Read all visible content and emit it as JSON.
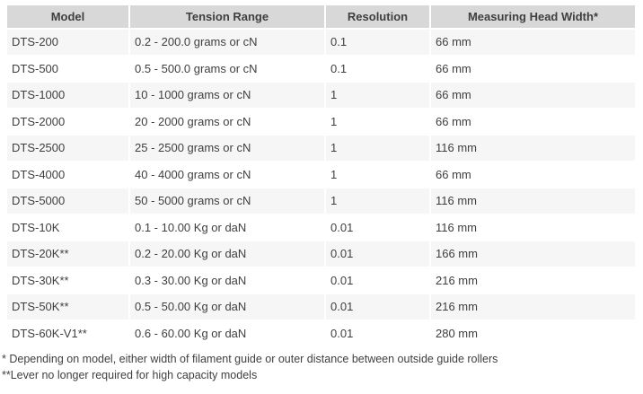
{
  "table": {
    "columns": [
      {
        "label": "Model"
      },
      {
        "label": "Tension Range"
      },
      {
        "label": "Resolution"
      },
      {
        "label": "Measuring Head Width*"
      }
    ],
    "rows": [
      {
        "model": "DTS-200",
        "tension_range": "0.2 - 200.0 grams or cN",
        "resolution": "0.1",
        "head_width": "66 mm"
      },
      {
        "model": "DTS-500",
        "tension_range": "0.5 - 500.0 grams or cN",
        "resolution": "0.1",
        "head_width": "66 mm"
      },
      {
        "model": "DTS-1000",
        "tension_range": "10 - 1000 grams or cN",
        "resolution": "1",
        "head_width": "66 mm"
      },
      {
        "model": "DTS-2000",
        "tension_range": "20 - 2000 grams or cN",
        "resolution": "1",
        "head_width": "66 mm"
      },
      {
        "model": "DTS-2500",
        "tension_range": "25 - 2500 grams or cN",
        "resolution": "1",
        "head_width": "116 mm"
      },
      {
        "model": "DTS-4000",
        "tension_range": "40 - 4000 grams or cN",
        "resolution": "1",
        "head_width": "66 mm"
      },
      {
        "model": "DTS-5000",
        "tension_range": "50 - 5000 grams or cN",
        "resolution": "1",
        "head_width": "116 mm"
      },
      {
        "model": "DTS-10K",
        "tension_range": "0.1 - 10.00 Kg or daN",
        "resolution": "0.01",
        "head_width": "116 mm"
      },
      {
        "model": "DTS-20K**",
        "tension_range": "0.2 - 20.00 Kg or daN",
        "resolution": "0.01",
        "head_width": "166 mm"
      },
      {
        "model": "DTS-30K**",
        "tension_range": "0.3 - 30.00 Kg or daN",
        "resolution": "0.01",
        "head_width": "216 mm"
      },
      {
        "model": "DTS-50K**",
        "tension_range": "0.5 - 50.00 Kg or daN",
        "resolution": "0.01",
        "head_width": "216 mm"
      },
      {
        "model": "DTS-60K-V1**",
        "tension_range": "0.6 - 60.00 Kg or daN",
        "resolution": "0.01",
        "head_width": "280 mm"
      }
    ]
  },
  "footnotes": [
    "* Depending on model, either width of filament guide or outer distance between outside guide rollers",
    "**Lever no longer required for high capacity models"
  ],
  "colors": {
    "header_bg": "#d8d8d8",
    "row_alt_bg": "#f6f6f6",
    "row_bg": "#ffffff",
    "text": "#3f3f3f"
  }
}
